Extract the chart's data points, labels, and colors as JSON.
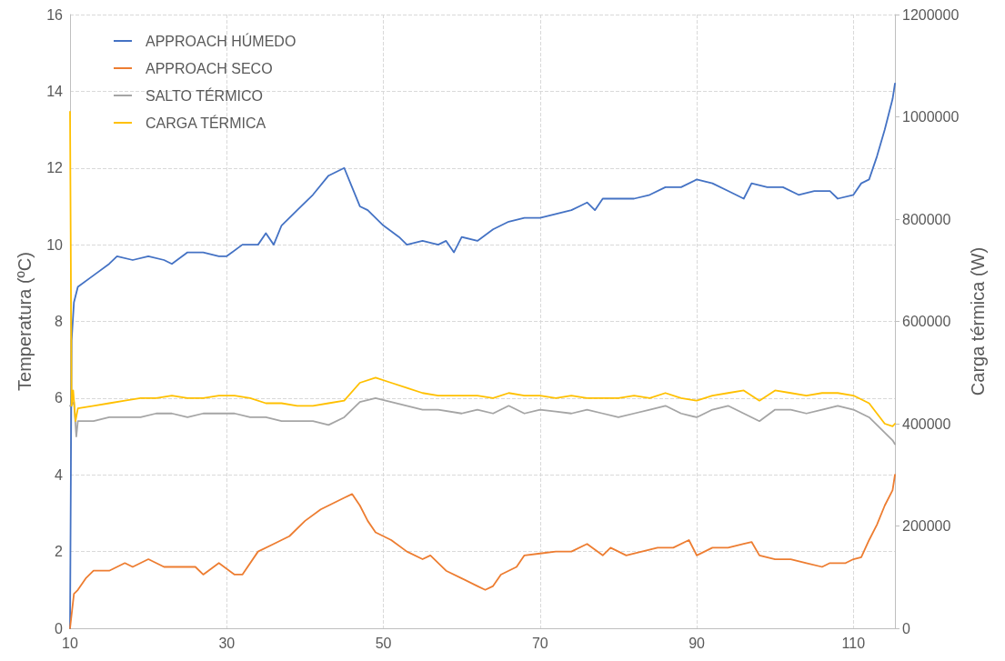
{
  "chart_data": {
    "type": "line",
    "ylabel": "Temperatura (ºC)",
    "y2label": "Carga térmica (W)",
    "xlim": [
      10,
      115.3
    ],
    "xticks": [
      10,
      30,
      50,
      70,
      90,
      110
    ],
    "ylim": [
      0,
      16
    ],
    "yticks": [
      0,
      2,
      4,
      6,
      8,
      10,
      12,
      14,
      16
    ],
    "y2lim": [
      0,
      1200000
    ],
    "y2ticks": [
      0,
      200000,
      400000,
      600000,
      800000,
      1000000,
      1200000
    ],
    "grid": true,
    "legend": "top left",
    "marker": "none",
    "line_style": "solid",
    "series": [
      {
        "name": "APPROACH HÚMEDO",
        "color": "#4472c4",
        "x": [
          10,
          10.2,
          10.5,
          11,
          13,
          15,
          16,
          18,
          20,
          22,
          23,
          25,
          27,
          29,
          30,
          32,
          34,
          35,
          36,
          37,
          39,
          41,
          43,
          44,
          45,
          46,
          47,
          48,
          49,
          50,
          52,
          53,
          55,
          57,
          58,
          59,
          60,
          62,
          64,
          66,
          68,
          70,
          72,
          74,
          75,
          76,
          77,
          78,
          80,
          82,
          84,
          86,
          88,
          90,
          92,
          94,
          96,
          97,
          99,
          101,
          103,
          105,
          107,
          108,
          110,
          111,
          112,
          113,
          114,
          115,
          115.3
        ],
        "values": [
          0,
          7.5,
          8.5,
          8.9,
          9.2,
          9.5,
          9.7,
          9.6,
          9.7,
          9.6,
          9.5,
          9.8,
          9.8,
          9.7,
          9.7,
          10.0,
          10.0,
          10.3,
          10.0,
          10.5,
          10.9,
          11.3,
          11.8,
          11.9,
          12.0,
          11.5,
          11.0,
          10.9,
          10.7,
          10.5,
          10.2,
          10.0,
          10.1,
          10.0,
          10.1,
          9.8,
          10.2,
          10.1,
          10.4,
          10.6,
          10.7,
          10.7,
          10.8,
          10.9,
          11.0,
          11.1,
          10.9,
          11.2,
          11.2,
          11.2,
          11.3,
          11.5,
          11.5,
          11.7,
          11.6,
          11.4,
          11.2,
          11.6,
          11.5,
          11.5,
          11.3,
          11.4,
          11.4,
          11.2,
          11.3,
          11.6,
          11.7,
          12.3,
          13.0,
          13.8,
          14.2
        ]
      },
      {
        "name": "APPROACH SECO",
        "color": "#ed7d31",
        "x": [
          10,
          10.5,
          11,
          12,
          13,
          15,
          16,
          17,
          18,
          20,
          22,
          24,
          26,
          27,
          29,
          31,
          32,
          34,
          36,
          37,
          38,
          40,
          42,
          44,
          45,
          46,
          47,
          48,
          49,
          51,
          53,
          55,
          56,
          58,
          60,
          62,
          63,
          64,
          65,
          67,
          68,
          70,
          72,
          74,
          76,
          78,
          79,
          81,
          83,
          85,
          87,
          89,
          90,
          92,
          94,
          96,
          97,
          98,
          100,
          102,
          104,
          106,
          107,
          109,
          110,
          111,
          112,
          113,
          114,
          115,
          115.3
        ],
        "values": [
          0,
          0.9,
          1.0,
          1.3,
          1.5,
          1.5,
          1.6,
          1.7,
          1.6,
          1.8,
          1.6,
          1.6,
          1.6,
          1.4,
          1.7,
          1.4,
          1.4,
          2.0,
          2.2,
          2.3,
          2.4,
          2.8,
          3.1,
          3.3,
          3.4,
          3.5,
          3.2,
          2.8,
          2.5,
          2.3,
          2.0,
          1.8,
          1.9,
          1.5,
          1.3,
          1.1,
          1.0,
          1.1,
          1.4,
          1.6,
          1.9,
          1.95,
          2.0,
          2.0,
          2.2,
          1.9,
          2.1,
          1.9,
          2.0,
          2.1,
          2.1,
          2.3,
          1.9,
          2.1,
          2.1,
          2.2,
          2.25,
          1.9,
          1.8,
          1.8,
          1.7,
          1.6,
          1.7,
          1.7,
          1.8,
          1.85,
          2.3,
          2.7,
          3.2,
          3.6,
          4.0
        ]
      },
      {
        "name": "SALTO TÉRMICO",
        "color": "#a5a5a5",
        "x": [
          10,
          10.5,
          10.8,
          11,
          13,
          15,
          17,
          19,
          21,
          23,
          25,
          27,
          29,
          31,
          33,
          35,
          37,
          39,
          41,
          43,
          45,
          47,
          49,
          51,
          53,
          55,
          57,
          60,
          62,
          64,
          66,
          68,
          70,
          72,
          74,
          76,
          78,
          80,
          82,
          84,
          86,
          88,
          90,
          92,
          94,
          96,
          98,
          100,
          102,
          104,
          106,
          108,
          110,
          112,
          114,
          115,
          115.3
        ],
        "values": [
          5.8,
          5.9,
          5.0,
          5.4,
          5.4,
          5.5,
          5.5,
          5.5,
          5.6,
          5.6,
          5.5,
          5.6,
          5.6,
          5.6,
          5.5,
          5.5,
          5.4,
          5.4,
          5.4,
          5.3,
          5.5,
          5.9,
          6.0,
          5.9,
          5.8,
          5.7,
          5.7,
          5.6,
          5.7,
          5.6,
          5.8,
          5.6,
          5.7,
          5.65,
          5.6,
          5.7,
          5.6,
          5.5,
          5.6,
          5.7,
          5.8,
          5.6,
          5.5,
          5.7,
          5.8,
          5.6,
          5.4,
          5.7,
          5.7,
          5.6,
          5.7,
          5.8,
          5.7,
          5.5,
          5.1,
          4.9,
          4.8
        ]
      },
      {
        "name": "CARGA TÉRMICA",
        "color": "#ffc000",
        "axis": "y2",
        "x": [
          10,
          10.2,
          10.4,
          10.7,
          11,
          13,
          15,
          17,
          19,
          21,
          23,
          25,
          27,
          29,
          31,
          33,
          35,
          37,
          39,
          41,
          43,
          45,
          47,
          49,
          51,
          53,
          55,
          57,
          60,
          62,
          64,
          66,
          68,
          70,
          72,
          74,
          76,
          78,
          80,
          82,
          84,
          86,
          88,
          90,
          92,
          94,
          96,
          98,
          100,
          102,
          104,
          106,
          108,
          110,
          112,
          114,
          115,
          115.3
        ],
        "values": [
          1010000,
          435000,
          465000,
          405000,
          430000,
          435000,
          440000,
          445000,
          450000,
          450000,
          455000,
          450000,
          450000,
          455000,
          455000,
          450000,
          440000,
          440000,
          435000,
          435000,
          440000,
          445000,
          480000,
          490000,
          480000,
          470000,
          460000,
          455000,
          455000,
          455000,
          450000,
          460000,
          455000,
          455000,
          450000,
          455000,
          450000,
          450000,
          450000,
          455000,
          450000,
          460000,
          450000,
          445000,
          455000,
          460000,
          465000,
          445000,
          465000,
          460000,
          455000,
          460000,
          460000,
          455000,
          440000,
          400000,
          395000,
          400000
        ]
      }
    ]
  }
}
